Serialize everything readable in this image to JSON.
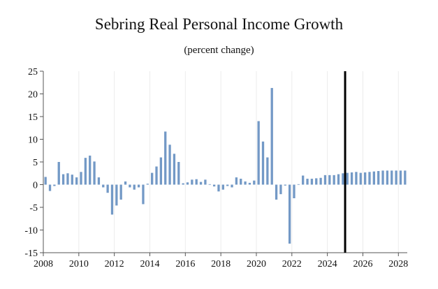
{
  "chart_data": {
    "type": "bar",
    "title": "Sebring Real Personal Income Growth",
    "subtitle": "(percent change)",
    "xlabel": "",
    "ylabel": "",
    "ylim": [
      -15,
      25
    ],
    "yticks": [
      25,
      20,
      15,
      10,
      5,
      0,
      -5,
      -10,
      -15
    ],
    "xlim": [
      2008,
      2028.5
    ],
    "xticks": [
      2008,
      2010,
      2012,
      2014,
      2016,
      2018,
      2020,
      2022,
      2024,
      2026,
      2028
    ],
    "forecast_line_x": 2025.0,
    "bar_color": "#7399c6",
    "series": [
      {
        "name": "Real Personal Income Growth",
        "x": [
          2008.0,
          2008.25,
          2008.5,
          2008.75,
          2009.0,
          2009.25,
          2009.5,
          2009.75,
          2010.0,
          2010.25,
          2010.5,
          2010.75,
          2011.0,
          2011.25,
          2011.5,
          2011.75,
          2012.0,
          2012.25,
          2012.5,
          2012.75,
          2013.0,
          2013.25,
          2013.5,
          2013.75,
          2014.0,
          2014.25,
          2014.5,
          2014.75,
          2015.0,
          2015.25,
          2015.5,
          2015.75,
          2016.0,
          2016.25,
          2016.5,
          2016.75,
          2017.0,
          2017.25,
          2017.5,
          2017.75,
          2018.0,
          2018.25,
          2018.5,
          2018.75,
          2019.0,
          2019.25,
          2019.5,
          2019.75,
          2020.0,
          2020.25,
          2020.5,
          2020.75,
          2021.0,
          2021.25,
          2021.5,
          2021.75,
          2022.0,
          2022.25,
          2022.5,
          2022.75,
          2023.0,
          2023.25,
          2023.5,
          2023.75,
          2024.0,
          2024.25,
          2024.5,
          2024.75,
          2025.0,
          2025.25,
          2025.5,
          2025.75,
          2026.0,
          2026.25,
          2026.5,
          2026.75,
          2027.0,
          2027.25,
          2027.5,
          2027.75,
          2028.0,
          2028.25
        ],
        "values": [
          1.7,
          -1.4,
          -0.3,
          5.0,
          2.3,
          2.5,
          2.2,
          1.6,
          2.8,
          5.9,
          6.4,
          5.1,
          1.6,
          -0.6,
          -1.8,
          -6.6,
          -4.6,
          -3.3,
          0.7,
          -0.6,
          -1.1,
          -0.6,
          -4.3,
          0.2,
          2.6,
          4.0,
          6.0,
          11.7,
          8.8,
          6.8,
          5.0,
          0.3,
          0.5,
          1.1,
          1.2,
          0.6,
          1.1,
          0.1,
          -0.4,
          -1.5,
          -1.1,
          -0.3,
          -0.6,
          1.6,
          1.3,
          0.7,
          0.4,
          0.9,
          14.0,
          9.5,
          6.0,
          21.3,
          -3.3,
          -2.1,
          -0.2,
          -13.0,
          -3.0,
          0.1,
          2.0,
          1.3,
          1.3,
          1.4,
          1.5,
          2.1,
          2.1,
          2.1,
          2.3,
          2.5,
          2.6,
          2.7,
          2.8,
          2.6,
          2.7,
          2.8,
          2.9,
          3.0,
          3.1,
          3.1,
          3.1,
          3.1,
          3.1,
          3.1
        ]
      }
    ]
  }
}
